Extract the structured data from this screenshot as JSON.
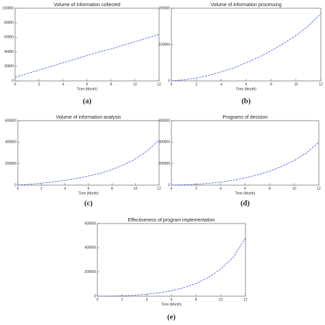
{
  "chart_data": [
    {
      "type": "line",
      "title": "Volume of information collected",
      "xlabel": "Time (Month)",
      "caption": "(a)",
      "x": [
        0,
        1,
        2,
        3,
        4,
        5,
        6,
        7,
        8,
        9,
        10,
        11,
        12
      ],
      "series": [
        {
          "color": "#3b4fd8",
          "values": [
            5000,
            10000,
            15000,
            20000,
            25000,
            30000,
            35000,
            40000,
            44000,
            49000,
            54000,
            59000,
            64000
          ]
        }
      ],
      "xlim": [
        0,
        12
      ],
      "xticks": [
        0,
        2,
        4,
        6,
        8,
        10,
        12
      ],
      "ylim": [
        0,
        100000
      ],
      "yticks": [
        0,
        20000,
        40000,
        60000,
        80000,
        100000
      ]
    },
    {
      "type": "line",
      "title": "Volume of information processing",
      "xlabel": "Time (Month)",
      "caption": "(b)",
      "x": [
        0,
        1,
        2,
        3,
        4,
        5,
        6,
        7,
        8,
        9,
        10,
        11,
        12
      ],
      "series": [
        {
          "color": "#3b4fd8",
          "values": [
            0,
            3000,
            8000,
            15000,
            25000,
            36000,
            50000,
            65000,
            83000,
            103000,
            125000,
            152000,
            185000
          ]
        }
      ],
      "xlim": [
        0,
        12
      ],
      "xticks": [
        0,
        2,
        4,
        6,
        8,
        10,
        12
      ],
      "ylim": [
        0,
        200000
      ],
      "yticks": [
        0,
        100000,
        200000
      ]
    },
    {
      "type": "line",
      "title": "Volume of information analysis",
      "xlabel": "Time (Month)",
      "caption": "(c)",
      "x": [
        0,
        1,
        2,
        3,
        4,
        5,
        6,
        7,
        8,
        9,
        10,
        11,
        12
      ],
      "series": [
        {
          "color": "#3b4fd8",
          "values": [
            0,
            8000,
            18000,
            30000,
            45000,
            62000,
            85000,
            110000,
            145000,
            190000,
            245000,
            320000,
            420000
          ]
        }
      ],
      "xlim": [
        0,
        12
      ],
      "xticks": [
        0,
        2,
        4,
        6,
        8,
        10,
        12
      ],
      "ylim": [
        0,
        600000
      ],
      "yticks": [
        0,
        200000,
        400000,
        600000
      ]
    },
    {
      "type": "line",
      "title": "Programs of decision",
      "xlabel": "Time (Month)",
      "caption": "(d)",
      "x": [
        0,
        1,
        2,
        3,
        4,
        5,
        6,
        7,
        8,
        9,
        10,
        11,
        12
      ],
      "series": [
        {
          "color": "#3b4fd8",
          "values": [
            0,
            3000,
            8000,
            16000,
            28000,
            45000,
            68000,
            95000,
            130000,
            175000,
            230000,
            300000,
            400000
          ]
        }
      ],
      "xlim": [
        0,
        12
      ],
      "xticks": [
        0,
        2,
        4,
        6,
        8,
        10,
        12
      ],
      "ylim": [
        0,
        600000
      ],
      "yticks": [
        0,
        200000,
        400000,
        600000
      ]
    },
    {
      "type": "line",
      "title": "Effectiveness of program implementation",
      "xlabel": "Time (Month)",
      "caption": "(e)",
      "x": [
        0,
        1,
        2,
        3,
        4,
        5,
        6,
        7,
        8,
        9,
        10,
        11,
        12
      ],
      "series": [
        {
          "color": "#3b4fd8",
          "values": [
            0,
            1000,
            3000,
            8000,
            16000,
            28000,
            45000,
            70000,
            105000,
            155000,
            225000,
            320000,
            480000
          ]
        }
      ],
      "xlim": [
        0,
        12
      ],
      "xticks": [
        0,
        2,
        4,
        6,
        8,
        10,
        12
      ],
      "ylim": [
        0,
        600000
      ],
      "yticks": [
        0,
        200000,
        400000,
        600000
      ]
    }
  ]
}
